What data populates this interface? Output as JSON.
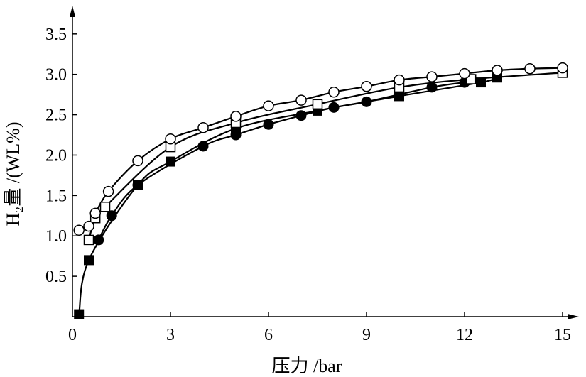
{
  "chart_data": {
    "type": "line",
    "xlabel": "压力 /bar",
    "ylabel": "H₂量 /(WL%)",
    "xlim": [
      0,
      15.5
    ],
    "ylim": [
      0,
      3.85
    ],
    "xticks": [
      0,
      3,
      6,
      9,
      12,
      15
    ],
    "xtick_labels": [
      "0",
      "3",
      "6",
      "9",
      "12",
      "15"
    ],
    "yticks": [
      0.5,
      1.0,
      1.5,
      2.0,
      2.5,
      3.0,
      3.5
    ],
    "ytick_labels": [
      "0.5",
      "1.0",
      "1.5",
      "2.0",
      "2.5",
      "3.0",
      "3.5"
    ],
    "grid": false,
    "series": [
      {
        "marker": "open-circle",
        "x": [
          0.2,
          0.5,
          0.7,
          1.1,
          2.0,
          3.0,
          4.0,
          5.0,
          6.0,
          7.0,
          8.0,
          9.0,
          10.0,
          11.0,
          12.0,
          13.0,
          14.0,
          15.0
        ],
        "y": [
          1.07,
          1.12,
          1.28,
          1.55,
          1.93,
          2.2,
          2.34,
          2.48,
          2.61,
          2.68,
          2.78,
          2.85,
          2.93,
          2.97,
          3.01,
          3.05,
          3.07,
          3.08
        ]
      },
      {
        "marker": "open-square",
        "x": [
          0.5,
          0.7,
          1.0,
          3.0,
          5.0,
          7.5,
          10.0,
          12.2,
          15.0
        ],
        "y": [
          0.95,
          1.22,
          1.36,
          2.1,
          2.4,
          2.63,
          2.84,
          2.94,
          3.02
        ]
      },
      {
        "marker": "filled-circle",
        "x": [
          0.8,
          1.2,
          2.0,
          4.0,
          5.0,
          6.0,
          7.0,
          8.0,
          9.0,
          11.0,
          12.0
        ],
        "y": [
          0.95,
          1.25,
          1.63,
          2.11,
          2.25,
          2.38,
          2.49,
          2.59,
          2.66,
          2.84,
          2.9
        ]
      },
      {
        "marker": "filled-square",
        "x": [
          0.2,
          0.5,
          2.0,
          3.0,
          5.0,
          7.5,
          10.0,
          12.5,
          13.0
        ],
        "y": [
          0.03,
          0.7,
          1.63,
          1.92,
          2.33,
          2.55,
          2.73,
          2.9,
          2.96
        ]
      }
    ]
  }
}
